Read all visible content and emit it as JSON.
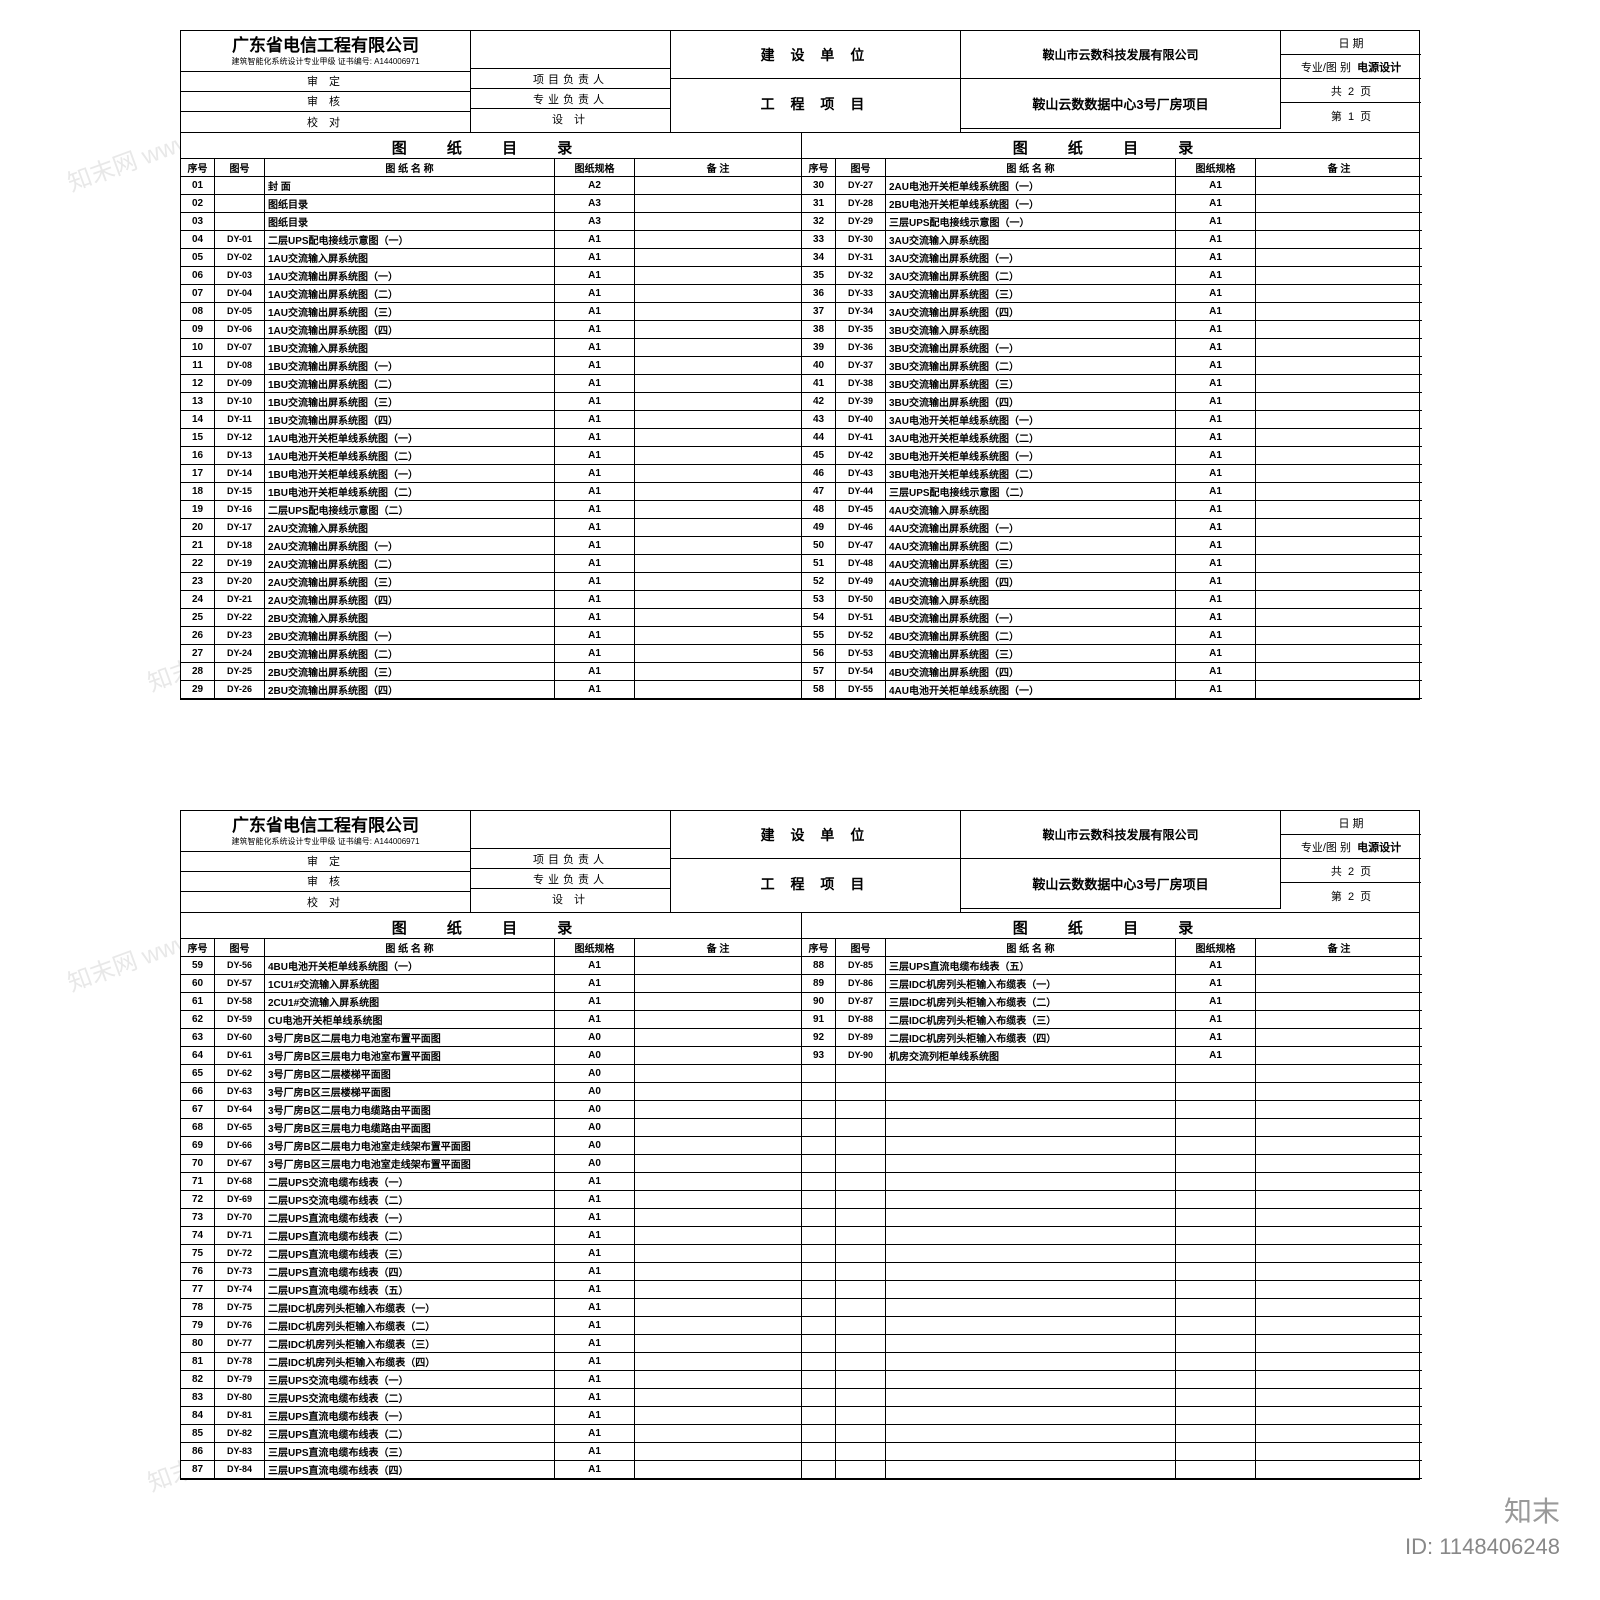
{
  "company": "广东省电信工程有限公司",
  "cert_line": "建筑智能化系统设计专业甲级  证书编号: A144006971",
  "approval_rows": [
    "审 定",
    "审 核",
    "校 对"
  ],
  "resp_rows": [
    "项目负责人",
    "专业负责人",
    "设 计"
  ],
  "mid_labels": [
    "建 设 单 位",
    "工 程 项 目"
  ],
  "client": "鞍山市云数科技发展有限公司",
  "project": "鞍山云数数据中心3号厂房项目",
  "right_labels": {
    "date": "日 期",
    "disc": "专业/图 别",
    "disc_val": "电源设计",
    "total": "共",
    "page": "第",
    "pg_unit": "页"
  },
  "page_totals": "2",
  "catalog_title": "图 纸 目 录",
  "headers": {
    "seq": "序号",
    "code": "图号",
    "name": "图 纸 名 称",
    "spec": "图纸规格",
    "note": "备 注"
  },
  "watermark_text": "知末网 www.znzmo.com",
  "brand": "知末",
  "id_text": "ID: 1148406248",
  "colors": {
    "border": "#000000",
    "bg": "#ffffff",
    "wm": "#e8e8e8"
  },
  "sheet1": {
    "page_cur": "1",
    "left": [
      {
        "n": "01",
        "c": "",
        "t": "封 面",
        "s": "A2"
      },
      {
        "n": "02",
        "c": "",
        "t": "图纸目录",
        "s": "A3"
      },
      {
        "n": "03",
        "c": "",
        "t": "图纸目录",
        "s": "A3"
      },
      {
        "n": "04",
        "c": "DY-01",
        "t": "二层UPS配电接线示意图（一）",
        "s": "A1"
      },
      {
        "n": "05",
        "c": "DY-02",
        "t": "1AU交流输入屏系统图",
        "s": "A1"
      },
      {
        "n": "06",
        "c": "DY-03",
        "t": "1AU交流输出屏系统图（一）",
        "s": "A1"
      },
      {
        "n": "07",
        "c": "DY-04",
        "t": "1AU交流输出屏系统图（二）",
        "s": "A1"
      },
      {
        "n": "08",
        "c": "DY-05",
        "t": "1AU交流输出屏系统图（三）",
        "s": "A1"
      },
      {
        "n": "09",
        "c": "DY-06",
        "t": "1AU交流输出屏系统图（四）",
        "s": "A1"
      },
      {
        "n": "10",
        "c": "DY-07",
        "t": "1BU交流输入屏系统图",
        "s": "A1"
      },
      {
        "n": "11",
        "c": "DY-08",
        "t": "1BU交流输出屏系统图（一）",
        "s": "A1"
      },
      {
        "n": "12",
        "c": "DY-09",
        "t": "1BU交流输出屏系统图（二）",
        "s": "A1"
      },
      {
        "n": "13",
        "c": "DY-10",
        "t": "1BU交流输出屏系统图（三）",
        "s": "A1"
      },
      {
        "n": "14",
        "c": "DY-11",
        "t": "1BU交流输出屏系统图（四）",
        "s": "A1"
      },
      {
        "n": "15",
        "c": "DY-12",
        "t": "1AU电池开关柜单线系统图（一）",
        "s": "A1"
      },
      {
        "n": "16",
        "c": "DY-13",
        "t": "1AU电池开关柜单线系统图（二）",
        "s": "A1"
      },
      {
        "n": "17",
        "c": "DY-14",
        "t": "1BU电池开关柜单线系统图（一）",
        "s": "A1"
      },
      {
        "n": "18",
        "c": "DY-15",
        "t": "1BU电池开关柜单线系统图（二）",
        "s": "A1"
      },
      {
        "n": "19",
        "c": "DY-16",
        "t": "二层UPS配电接线示意图（二）",
        "s": "A1"
      },
      {
        "n": "20",
        "c": "DY-17",
        "t": "2AU交流输入屏系统图",
        "s": "A1"
      },
      {
        "n": "21",
        "c": "DY-18",
        "t": "2AU交流输出屏系统图（一）",
        "s": "A1"
      },
      {
        "n": "22",
        "c": "DY-19",
        "t": "2AU交流输出屏系统图（二）",
        "s": "A1"
      },
      {
        "n": "23",
        "c": "DY-20",
        "t": "2AU交流输出屏系统图（三）",
        "s": "A1"
      },
      {
        "n": "24",
        "c": "DY-21",
        "t": "2AU交流输出屏系统图（四）",
        "s": "A1"
      },
      {
        "n": "25",
        "c": "DY-22",
        "t": "2BU交流输入屏系统图",
        "s": "A1"
      },
      {
        "n": "26",
        "c": "DY-23",
        "t": "2BU交流输出屏系统图（一）",
        "s": "A1"
      },
      {
        "n": "27",
        "c": "DY-24",
        "t": "2BU交流输出屏系统图（二）",
        "s": "A1"
      },
      {
        "n": "28",
        "c": "DY-25",
        "t": "2BU交流输出屏系统图（三）",
        "s": "A1"
      },
      {
        "n": "29",
        "c": "DY-26",
        "t": "2BU交流输出屏系统图（四）",
        "s": "A1"
      }
    ],
    "right": [
      {
        "n": "30",
        "c": "DY-27",
        "t": "2AU电池开关柜单线系统图（一）",
        "s": "A1"
      },
      {
        "n": "31",
        "c": "DY-28",
        "t": "2BU电池开关柜单线系统图（一）",
        "s": "A1"
      },
      {
        "n": "32",
        "c": "DY-29",
        "t": "三层UPS配电接线示意图（一）",
        "s": "A1"
      },
      {
        "n": "33",
        "c": "DY-30",
        "t": "3AU交流输入屏系统图",
        "s": "A1"
      },
      {
        "n": "34",
        "c": "DY-31",
        "t": "3AU交流输出屏系统图（一）",
        "s": "A1"
      },
      {
        "n": "35",
        "c": "DY-32",
        "t": "3AU交流输出屏系统图（二）",
        "s": "A1"
      },
      {
        "n": "36",
        "c": "DY-33",
        "t": "3AU交流输出屏系统图（三）",
        "s": "A1"
      },
      {
        "n": "37",
        "c": "DY-34",
        "t": "3AU交流输出屏系统图（四）",
        "s": "A1"
      },
      {
        "n": "38",
        "c": "DY-35",
        "t": "3BU交流输入屏系统图",
        "s": "A1"
      },
      {
        "n": "39",
        "c": "DY-36",
        "t": "3BU交流输出屏系统图（一）",
        "s": "A1"
      },
      {
        "n": "40",
        "c": "DY-37",
        "t": "3BU交流输出屏系统图（二）",
        "s": "A1"
      },
      {
        "n": "41",
        "c": "DY-38",
        "t": "3BU交流输出屏系统图（三）",
        "s": "A1"
      },
      {
        "n": "42",
        "c": "DY-39",
        "t": "3BU交流输出屏系统图（四）",
        "s": "A1"
      },
      {
        "n": "43",
        "c": "DY-40",
        "t": "3AU电池开关柜单线系统图（一）",
        "s": "A1"
      },
      {
        "n": "44",
        "c": "DY-41",
        "t": "3AU电池开关柜单线系统图（二）",
        "s": "A1"
      },
      {
        "n": "45",
        "c": "DY-42",
        "t": "3BU电池开关柜单线系统图（一）",
        "s": "A1"
      },
      {
        "n": "46",
        "c": "DY-43",
        "t": "3BU电池开关柜单线系统图（二）",
        "s": "A1"
      },
      {
        "n": "47",
        "c": "DY-44",
        "t": "三层UPS配电接线示意图（二）",
        "s": "A1"
      },
      {
        "n": "48",
        "c": "DY-45",
        "t": "4AU交流输入屏系统图",
        "s": "A1"
      },
      {
        "n": "49",
        "c": "DY-46",
        "t": "4AU交流输出屏系统图（一）",
        "s": "A1"
      },
      {
        "n": "50",
        "c": "DY-47",
        "t": "4AU交流输出屏系统图（二）",
        "s": "A1"
      },
      {
        "n": "51",
        "c": "DY-48",
        "t": "4AU交流输出屏系统图（三）",
        "s": "A1"
      },
      {
        "n": "52",
        "c": "DY-49",
        "t": "4AU交流输出屏系统图（四）",
        "s": "A1"
      },
      {
        "n": "53",
        "c": "DY-50",
        "t": "4BU交流输入屏系统图",
        "s": "A1"
      },
      {
        "n": "54",
        "c": "DY-51",
        "t": "4BU交流输出屏系统图（一）",
        "s": "A1"
      },
      {
        "n": "55",
        "c": "DY-52",
        "t": "4BU交流输出屏系统图（二）",
        "s": "A1"
      },
      {
        "n": "56",
        "c": "DY-53",
        "t": "4BU交流输出屏系统图（三）",
        "s": "A1"
      },
      {
        "n": "57",
        "c": "DY-54",
        "t": "4BU交流输出屏系统图（四）",
        "s": "A1"
      },
      {
        "n": "58",
        "c": "DY-55",
        "t": "4AU电池开关柜单线系统图（一）",
        "s": "A1"
      }
    ]
  },
  "sheet2": {
    "page_cur": "2",
    "left": [
      {
        "n": "59",
        "c": "DY-56",
        "t": "4BU电池开关柜单线系统图（一）",
        "s": "A1"
      },
      {
        "n": "60",
        "c": "DY-57",
        "t": "1CU1#交流输入屏系统图",
        "s": "A1"
      },
      {
        "n": "61",
        "c": "DY-58",
        "t": "2CU1#交流输入屏系统图",
        "s": "A1"
      },
      {
        "n": "62",
        "c": "DY-59",
        "t": "CU电池开关柜单线系统图",
        "s": "A1"
      },
      {
        "n": "63",
        "c": "DY-60",
        "t": "3号厂房B区二层电力电池室布置平面图",
        "s": "A0"
      },
      {
        "n": "64",
        "c": "DY-61",
        "t": "3号厂房B区三层电力电池室布置平面图",
        "s": "A0"
      },
      {
        "n": "65",
        "c": "DY-62",
        "t": "3号厂房B区二层楼梯平面图",
        "s": "A0"
      },
      {
        "n": "66",
        "c": "DY-63",
        "t": "3号厂房B区三层楼梯平面图",
        "s": "A0"
      },
      {
        "n": "67",
        "c": "DY-64",
        "t": "3号厂房B区二层电力电缆路由平面图",
        "s": "A0"
      },
      {
        "n": "68",
        "c": "DY-65",
        "t": "3号厂房B区三层电力电缆路由平面图",
        "s": "A0"
      },
      {
        "n": "69",
        "c": "DY-66",
        "t": "3号厂房B区二层电力电池室走线架布置平面图",
        "s": "A0"
      },
      {
        "n": "70",
        "c": "DY-67",
        "t": "3号厂房B区三层电力电池室走线架布置平面图",
        "s": "A0"
      },
      {
        "n": "71",
        "c": "DY-68",
        "t": "二层UPS交流电缆布线表（一）",
        "s": "A1"
      },
      {
        "n": "72",
        "c": "DY-69",
        "t": "二层UPS交流电缆布线表（二）",
        "s": "A1"
      },
      {
        "n": "73",
        "c": "DY-70",
        "t": "二层UPS直流电缆布线表（一）",
        "s": "A1"
      },
      {
        "n": "74",
        "c": "DY-71",
        "t": "二层UPS直流电缆布线表（二）",
        "s": "A1"
      },
      {
        "n": "75",
        "c": "DY-72",
        "t": "二层UPS直流电缆布线表（三）",
        "s": "A1"
      },
      {
        "n": "76",
        "c": "DY-73",
        "t": "二层UPS直流电缆布线表（四）",
        "s": "A1"
      },
      {
        "n": "77",
        "c": "DY-74",
        "t": "二层UPS直流电缆布线表（五）",
        "s": "A1"
      },
      {
        "n": "78",
        "c": "DY-75",
        "t": "二层IDC机房列头柜输入布缆表（一）",
        "s": "A1"
      },
      {
        "n": "79",
        "c": "DY-76",
        "t": "二层IDC机房列头柜输入布缆表（二）",
        "s": "A1"
      },
      {
        "n": "80",
        "c": "DY-77",
        "t": "二层IDC机房列头柜输入布缆表（三）",
        "s": "A1"
      },
      {
        "n": "81",
        "c": "DY-78",
        "t": "二层IDC机房列头柜输入布缆表（四）",
        "s": "A1"
      },
      {
        "n": "82",
        "c": "DY-79",
        "t": "三层UPS交流电缆布线表（一）",
        "s": "A1"
      },
      {
        "n": "83",
        "c": "DY-80",
        "t": "三层UPS交流电缆布线表（二）",
        "s": "A1"
      },
      {
        "n": "84",
        "c": "DY-81",
        "t": "三层UPS直流电缆布线表（一）",
        "s": "A1"
      },
      {
        "n": "85",
        "c": "DY-82",
        "t": "三层UPS直流电缆布线表（二）",
        "s": "A1"
      },
      {
        "n": "86",
        "c": "DY-83",
        "t": "三层UPS直流电缆布线表（三）",
        "s": "A1"
      },
      {
        "n": "87",
        "c": "DY-84",
        "t": "三层UPS直流电缆布线表（四）",
        "s": "A1"
      }
    ],
    "right": [
      {
        "n": "88",
        "c": "DY-85",
        "t": "三层UPS直流电缆布线表（五）",
        "s": "A1"
      },
      {
        "n": "89",
        "c": "DY-86",
        "t": "三层IDC机房列头柜输入布缆表（一）",
        "s": "A1"
      },
      {
        "n": "90",
        "c": "DY-87",
        "t": "三层IDC机房列头柜输入布缆表（二）",
        "s": "A1"
      },
      {
        "n": "91",
        "c": "DY-88",
        "t": "二层IDC机房列头柜输入布缆表（三）",
        "s": "A1"
      },
      {
        "n": "92",
        "c": "DY-89",
        "t": "二层IDC机房列头柜输入布缆表（四）",
        "s": "A1"
      },
      {
        "n": "93",
        "c": "DY-90",
        "t": "机房交流列柜单线系统图",
        "s": "A1"
      }
    ],
    "right_blank_rows": 23
  }
}
